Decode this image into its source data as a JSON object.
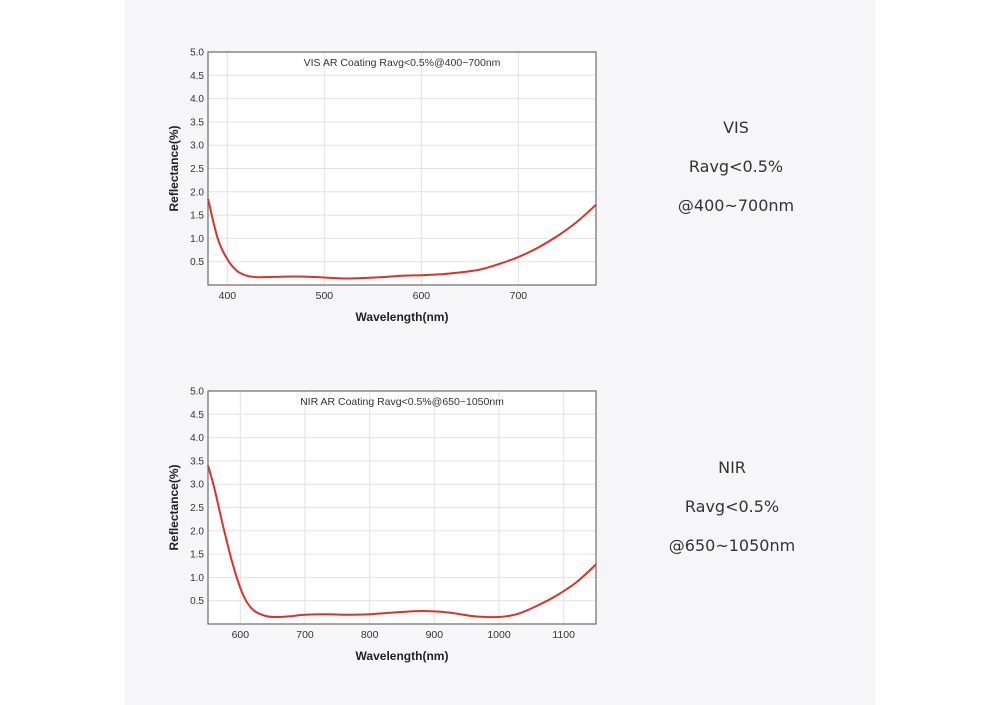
{
  "chart_data": [
    {
      "type": "line",
      "title": "VIS AR Coating Ravg<0.5%@400~700nm",
      "xlabel": "Wavelength(nm)",
      "ylabel": "Reflectance(%)",
      "xlim": [
        380,
        780
      ],
      "ylim": [
        0,
        5.0
      ],
      "x_ticks": [
        400,
        500,
        600,
        700
      ],
      "y_ticks": [
        0.5,
        1.0,
        1.5,
        2.0,
        2.5,
        3.0,
        3.5,
        4.0,
        4.5,
        5.0
      ],
      "y_tick_labels": [
        "0.5",
        "1.0",
        "1.5",
        "2.0",
        "2.5",
        "3.0",
        "3.5",
        "4.0",
        "4.5",
        "5.0"
      ],
      "grid": true,
      "color": "#d9322b",
      "series": [
        {
          "x": [
            380,
            390,
            400,
            410,
            420,
            430,
            440,
            460,
            480,
            500,
            520,
            540,
            560,
            580,
            600,
            620,
            640,
            660,
            680,
            700,
            720,
            740,
            760,
            780
          ],
          "y": [
            1.85,
            1.0,
            0.55,
            0.3,
            0.2,
            0.17,
            0.17,
            0.18,
            0.18,
            0.16,
            0.14,
            0.15,
            0.17,
            0.2,
            0.21,
            0.23,
            0.27,
            0.33,
            0.45,
            0.6,
            0.8,
            1.05,
            1.35,
            1.72
          ]
        }
      ]
    },
    {
      "type": "line",
      "title": "NIR AR Coating Ravg<0.5%@650~1050nm",
      "xlabel": "Wavelength(nm)",
      "ylabel": "Reflectance(%)",
      "xlim": [
        550,
        1150
      ],
      "ylim": [
        0,
        5.0
      ],
      "x_ticks": [
        600,
        700,
        800,
        900,
        1000,
        1100
      ],
      "y_ticks": [
        0.5,
        1.0,
        1.5,
        2.0,
        2.5,
        3.0,
        3.5,
        4.0,
        4.5,
        5.0
      ],
      "y_tick_labels": [
        "0.5",
        "1.0",
        "1.5",
        "2.0",
        "2.5",
        "3.0",
        "3.5",
        "4.0",
        "4.5",
        "5.0"
      ],
      "grid": true,
      "color": "#d9322b",
      "series": [
        {
          "x": [
            550,
            560,
            575,
            590,
            605,
            620,
            640,
            660,
            680,
            700,
            730,
            760,
            800,
            840,
            880,
            920,
            960,
            1000,
            1030,
            1060,
            1090,
            1120,
            1150
          ],
          "y": [
            3.4,
            2.9,
            2.0,
            1.2,
            0.6,
            0.3,
            0.17,
            0.15,
            0.17,
            0.2,
            0.21,
            0.2,
            0.21,
            0.25,
            0.28,
            0.25,
            0.17,
            0.15,
            0.22,
            0.4,
            0.62,
            0.9,
            1.28
          ]
        }
      ]
    }
  ],
  "labels": [
    {
      "name": "VIS",
      "ravg": "Ravg<0.5%",
      "range": "@400~700nm"
    },
    {
      "name": "NIR",
      "ravg": "Ravg<0.5%",
      "range": "@650~1050nm"
    }
  ]
}
